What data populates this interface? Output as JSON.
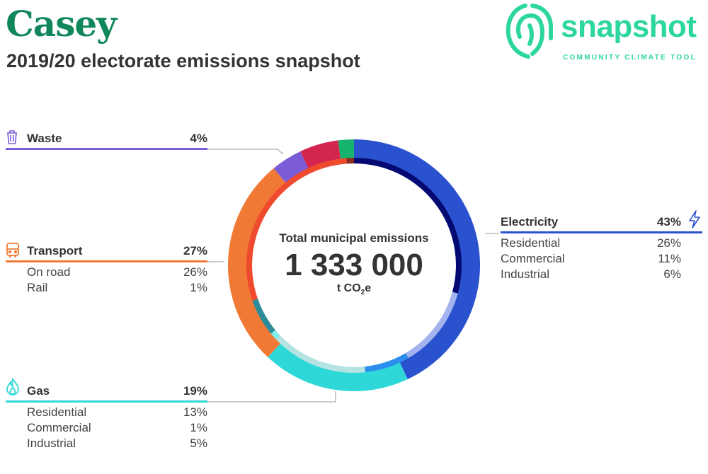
{
  "header": {
    "title": "Casey",
    "subtitle": "2019/20 electorate emissions snapshot"
  },
  "logo": {
    "word": "snapshot",
    "tagline": "COMMUNITY CLIMATE TOOL",
    "color": "#2dd6a0"
  },
  "center": {
    "label": "Total municipal emissions",
    "value": "1 333 000",
    "unit_prefix": "t CO",
    "unit_sub": "2",
    "unit_suffix": "e"
  },
  "categories": {
    "waste": {
      "name": "Waste",
      "pct": "4%",
      "color": "#7b5bd6",
      "icon": "trash-icon"
    },
    "transport": {
      "name": "Transport",
      "pct": "27%",
      "color": "#f07a35",
      "icon": "train-icon",
      "items": [
        {
          "name": "On road",
          "pct": "26%"
        },
        {
          "name": "Rail",
          "pct": "1%"
        }
      ]
    },
    "gas": {
      "name": "Gas",
      "pct": "19%",
      "color": "#2fd8d8",
      "icon": "flame-icon",
      "items": [
        {
          "name": "Residential",
          "pct": "13%"
        },
        {
          "name": "Commercial",
          "pct": "1%"
        },
        {
          "name": "Industrial",
          "pct": "5%"
        }
      ]
    },
    "electricity": {
      "name": "Electricity",
      "pct": "43%",
      "color": "#2a52cf",
      "icon": "lightning-icon",
      "items": [
        {
          "name": "Residential",
          "pct": "26%"
        },
        {
          "name": "Commercial",
          "pct": "11%"
        },
        {
          "name": "Industrial",
          "pct": "6%"
        }
      ]
    }
  },
  "chart_data": {
    "type": "pie",
    "title": "2019/20 electorate emissions snapshot",
    "total": 1333000,
    "unit": "t CO2e",
    "outer_ring": [
      {
        "name": "Electricity",
        "value": 43,
        "color": "#2a52cf"
      },
      {
        "name": "Gas",
        "value": 19,
        "color": "#2fd8d8"
      },
      {
        "name": "Transport",
        "value": 27,
        "color": "#f07a35"
      },
      {
        "name": "Waste",
        "value": 4,
        "color": "#7b5bd6"
      },
      {
        "name": "",
        "value": 5,
        "color": "#d4254f"
      },
      {
        "name": "",
        "value": 2,
        "color": "#16b36e"
      }
    ],
    "inner_ring": [
      {
        "name": "Electricity Residential",
        "value": 26,
        "color": "#050a72"
      },
      {
        "name": "Electricity Commercial",
        "value": 11,
        "color": "#a3b3ee"
      },
      {
        "name": "Electricity Industrial",
        "value": 6,
        "color": "#2c8ff0"
      },
      {
        "name": "Gas Residential",
        "value": 13,
        "color": "#b5e3e3"
      },
      {
        "name": "Gas Commercial",
        "value": 1,
        "color": "#7ff0f0"
      },
      {
        "name": "Gas Industrial",
        "value": 5,
        "color": "#2b8d9a"
      },
      {
        "name": "Transport On road",
        "value": 26,
        "color": "#f04a2e"
      },
      {
        "name": "Transport Rail",
        "value": 1,
        "color": "#8a2b20"
      }
    ]
  }
}
